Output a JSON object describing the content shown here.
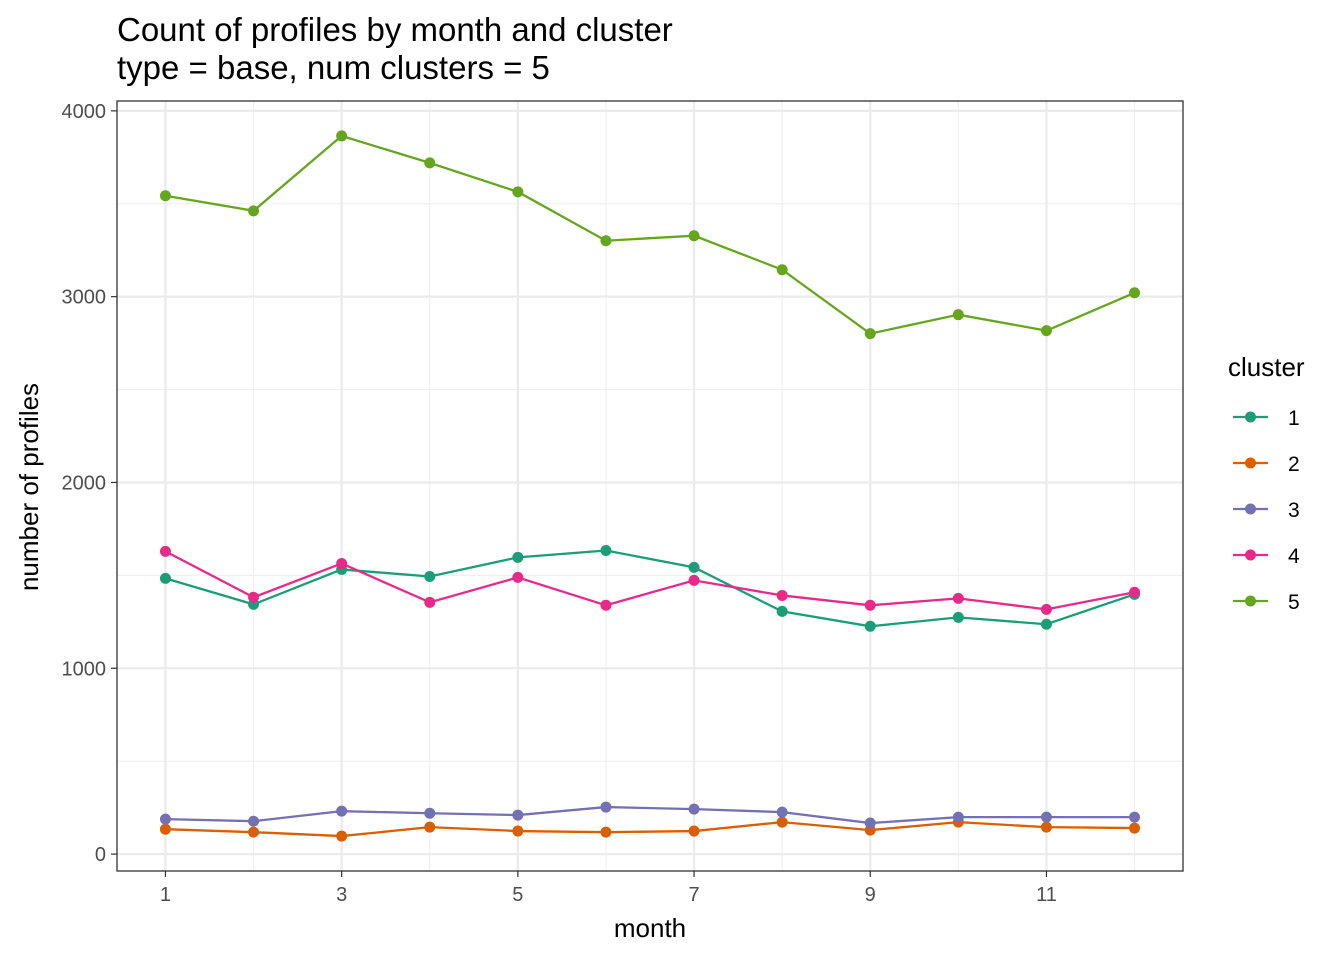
{
  "chart_data": {
    "type": "line",
    "title": "Count of profiles by month and cluster",
    "subtitle": "type = base, num clusters = 5",
    "xlabel": "month",
    "ylabel": "number of profiles",
    "x": [
      1,
      2,
      3,
      4,
      5,
      6,
      7,
      8,
      9,
      10,
      11,
      12
    ],
    "xticks": [
      1,
      3,
      5,
      7,
      9,
      11
    ],
    "yticks": [
      0,
      1000,
      2000,
      3000,
      4000
    ],
    "xlim": [
      0.45,
      12.55
    ],
    "ylim": [
      -91,
      4053
    ],
    "grid": true,
    "legend_title": "cluster",
    "legend_position": "right",
    "series": [
      {
        "name": "1",
        "color": "#1B9E77",
        "values": [
          1484,
          1344,
          1532,
          1494,
          1597,
          1634,
          1543,
          1306,
          1226,
          1274,
          1237,
          1398
        ]
      },
      {
        "name": "2",
        "color": "#D95F02",
        "values": [
          134,
          118,
          97,
          145,
          124,
          118,
          124,
          172,
          129,
          172,
          145,
          140
        ]
      },
      {
        "name": "3",
        "color": "#7570B3",
        "values": [
          188,
          177,
          231,
          220,
          210,
          253,
          242,
          226,
          167,
          199,
          199,
          199
        ]
      },
      {
        "name": "4",
        "color": "#E7298A",
        "values": [
          1629,
          1382,
          1564,
          1355,
          1489,
          1339,
          1473,
          1392,
          1339,
          1376,
          1317,
          1409
        ]
      },
      {
        "name": "5",
        "color": "#66A61E",
        "values": [
          3543,
          3462,
          3865,
          3720,
          3564,
          3301,
          3328,
          3145,
          2801,
          2903,
          2817,
          3021
        ]
      }
    ]
  }
}
